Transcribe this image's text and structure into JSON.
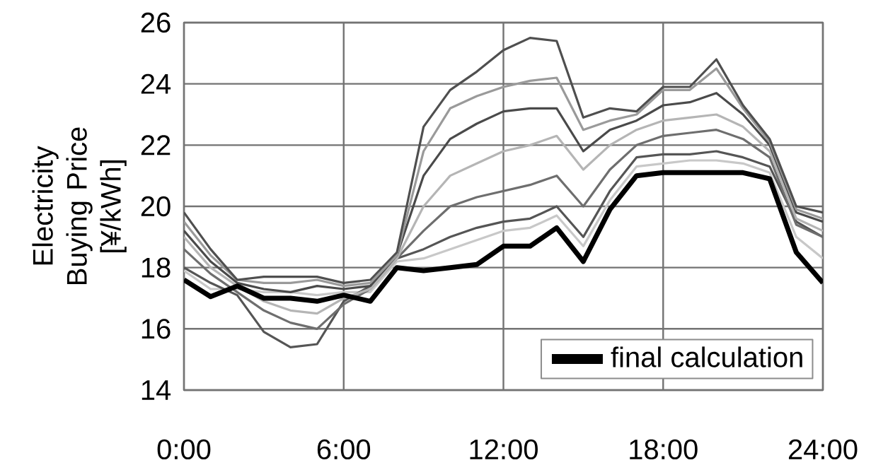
{
  "chart_data": {
    "type": "line",
    "ylabel": "Electricity Buying Price [¥/kWh]",
    "x": [
      0,
      1,
      2,
      3,
      4,
      5,
      6,
      7,
      8,
      9,
      10,
      11,
      12,
      13,
      14,
      15,
      16,
      17,
      18,
      19,
      20,
      21,
      22,
      23,
      24
    ],
    "xlim": [
      0,
      24
    ],
    "xticks": [
      {
        "value": 0,
        "label": "0:00"
      },
      {
        "value": 6,
        "label": "6:00"
      },
      {
        "value": 12,
        "label": "12:00"
      },
      {
        "value": 18,
        "label": "18:00"
      },
      {
        "value": 24,
        "label": "24:00"
      }
    ],
    "ylim": [
      14,
      26
    ],
    "yticks": [
      14,
      16,
      18,
      20,
      22,
      24,
      26
    ],
    "grid": true,
    "legend": "bottom right",
    "marker": "none",
    "line_style": "solid",
    "series": [
      {
        "color": "#c8c8c8",
        "values": [
          17.9,
          17.3,
          17.3,
          17.2,
          17.2,
          17.1,
          17.2,
          17.2,
          18.2,
          18.3,
          18.6,
          18.9,
          19.2,
          19.3,
          19.7,
          18.7,
          20.2,
          21.3,
          21.4,
          21.5,
          21.5,
          21.4,
          21.1,
          19.0,
          18.3
        ]
      },
      {
        "color": "#555555",
        "values": [
          18.0,
          17.5,
          17.1,
          15.9,
          15.4,
          15.5,
          16.9,
          17.4,
          18.3,
          18.6,
          19.0,
          19.3,
          19.5,
          19.6,
          20.0,
          19.0,
          20.5,
          21.6,
          21.7,
          21.7,
          21.8,
          21.6,
          21.3,
          19.5,
          19.0
        ]
      },
      {
        "color": "#6e6e6e",
        "values": [
          18.6,
          17.8,
          17.2,
          16.6,
          16.2,
          16.0,
          16.8,
          17.3,
          18.3,
          19.2,
          20.0,
          20.3,
          20.5,
          20.7,
          21.0,
          20.0,
          21.2,
          22.0,
          22.3,
          22.4,
          22.5,
          22.2,
          21.6,
          19.4,
          19.0
        ]
      },
      {
        "color": "#b5b5b5",
        "values": [
          19.0,
          18.0,
          17.4,
          16.9,
          16.6,
          16.5,
          17.0,
          17.3,
          18.3,
          20.0,
          21.0,
          21.4,
          21.8,
          22.0,
          22.3,
          21.2,
          22.0,
          22.5,
          22.8,
          22.9,
          23.0,
          22.6,
          21.8,
          19.6,
          19.2
        ]
      },
      {
        "color": "#4a4a4a",
        "values": [
          19.2,
          18.2,
          17.5,
          17.3,
          17.2,
          17.4,
          17.3,
          17.4,
          18.4,
          21.0,
          22.2,
          22.7,
          23.1,
          23.2,
          23.2,
          21.8,
          22.5,
          22.8,
          23.3,
          23.4,
          23.7,
          23.0,
          22.0,
          19.8,
          19.5
        ]
      },
      {
        "color": "#9a9a9a",
        "values": [
          19.5,
          18.4,
          17.6,
          17.5,
          17.5,
          17.6,
          17.4,
          17.5,
          18.4,
          21.8,
          23.2,
          23.6,
          23.9,
          24.1,
          24.2,
          22.5,
          22.8,
          23.0,
          23.8,
          23.8,
          24.5,
          23.2,
          22.1,
          19.9,
          19.6
        ]
      },
      {
        "color": "#4f4f4f",
        "values": [
          19.8,
          18.6,
          17.6,
          17.7,
          17.7,
          17.7,
          17.5,
          17.6,
          18.5,
          22.6,
          23.8,
          24.4,
          25.1,
          25.5,
          25.4,
          22.9,
          23.2,
          23.1,
          23.9,
          23.9,
          24.8,
          23.3,
          22.2,
          20.0,
          19.8
        ]
      },
      {
        "name": "final calculation",
        "color": "#000000",
        "values": [
          17.6,
          17.05,
          17.4,
          17.0,
          17.0,
          16.9,
          17.1,
          16.9,
          18.0,
          17.9,
          18.0,
          18.1,
          18.7,
          18.7,
          19.3,
          18.2,
          19.9,
          21.0,
          21.1,
          21.1,
          21.1,
          21.1,
          20.9,
          18.5,
          17.5
        ]
      }
    ]
  }
}
